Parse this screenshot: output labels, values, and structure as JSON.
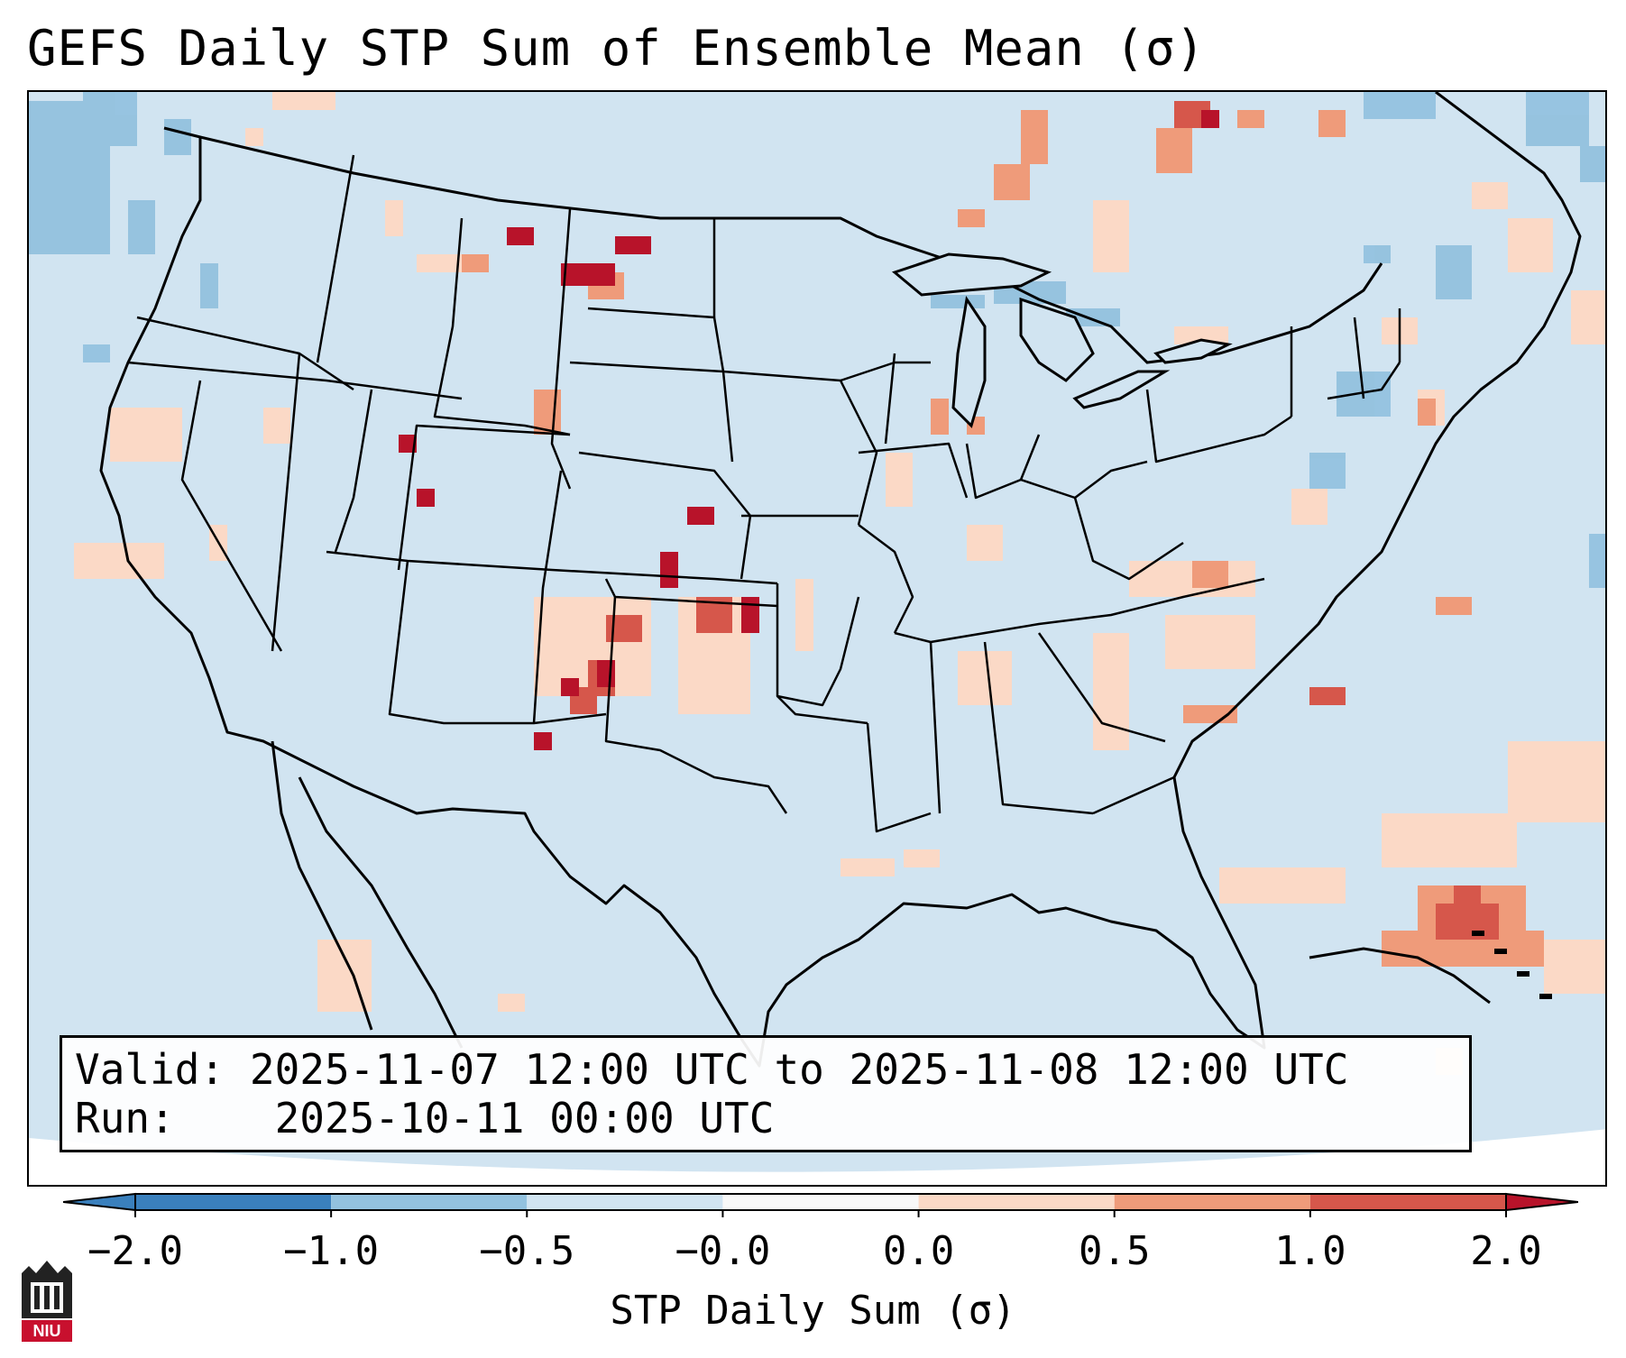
{
  "title": "GEFS Daily STP Sum of Ensemble Mean (σ)",
  "info": {
    "valid_label": "Valid:",
    "valid_value": "2025-11-07 12:00 UTC to 2025-11-08 12:00 UTC",
    "run_label": "Run:",
    "run_value": "2025-10-11 00:00 UTC"
  },
  "colorbar": {
    "label": "STP Daily Sum (σ)",
    "ticks": [
      "−2.0",
      "−1.0",
      "−0.5",
      "−0.0",
      "0.0",
      "0.5",
      "1.0",
      "2.0"
    ],
    "colors": [
      "#3a80bd",
      "#93c2df",
      "#d1e4f1",
      "#f8f8f8",
      "#fbd9c6",
      "#ef9b7a",
      "#d6574b"
    ],
    "extend_low_color": "#3a80bd",
    "extend_high_color": "#b8132a"
  },
  "map": {
    "background_color": "#d1e4f1",
    "region": "Contiguous United States",
    "anomaly_colors": {
      "strong_negative": "#93c2df",
      "weak_positive": "#fbd9c6",
      "moderate_positive": "#ef9b7a",
      "high_positive": "#d6574b",
      "extreme_positive": "#b8132a"
    }
  },
  "logo": {
    "text": "NIU",
    "color": "#c8102e"
  }
}
